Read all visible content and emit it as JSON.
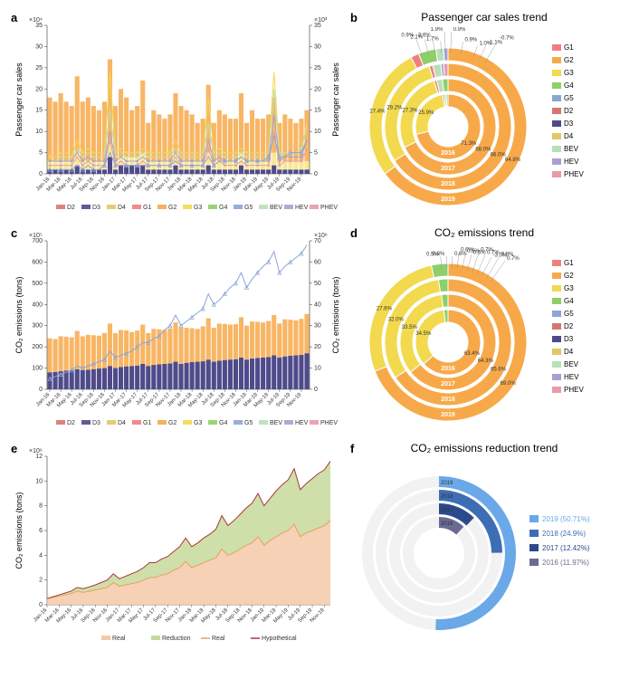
{
  "months": [
    "Jan-16",
    "Mar-16",
    "May-16",
    "Jul-16",
    "Sep-16",
    "Nov-16",
    "Jan-17",
    "Mar-17",
    "May-17",
    "Jul-17",
    "Sep-17",
    "Nov-17",
    "Jan-18",
    "Mar-18",
    "May-18",
    "Jul-18",
    "Sep-18",
    "Nov-18",
    "Jan-19",
    "Mar-19",
    "May-19",
    "Jul-19",
    "Sep-19",
    "Nov-19"
  ],
  "colors": {
    "G1": "#f17e7e",
    "G2": "#f7a94a",
    "G3": "#f2d94e",
    "G4": "#8ecf6a",
    "G5": "#8aa6d6",
    "D2": "#d6776f",
    "D3": "#4f4a8a",
    "D4": "#e2c665",
    "BEV": "#b8e0b8",
    "HEV": "#a8a0d0",
    "PHEV": "#e89aa8",
    "background": "#ffffff",
    "axis": "#333333"
  },
  "panel_a": {
    "label": "a",
    "ylabel_left": "Passenger car sales",
    "ylabel_right": "Passenger car sales",
    "y_left_exp": "×10⁴",
    "y_right_exp": "×10³",
    "ylim_left": [
      0,
      35
    ],
    "ylim_right": [
      0,
      35
    ],
    "yticks_left": [
      0,
      5,
      10,
      15,
      20,
      25,
      30,
      35
    ],
    "yticks_right": [
      0,
      5,
      10,
      15,
      20,
      25,
      30,
      35
    ],
    "bar_G2": [
      15,
      14,
      16,
      14,
      13,
      18,
      14,
      15,
      13,
      12,
      14,
      20,
      13,
      16,
      14,
      11,
      12,
      17,
      9,
      12,
      11,
      10,
      11,
      14,
      13,
      12,
      11,
      9,
      10,
      16,
      9,
      12,
      11,
      10,
      10,
      14,
      9,
      12,
      10,
      10,
      11,
      13,
      9,
      11,
      10,
      9,
      10,
      12
    ],
    "bar_G3": [
      2,
      2,
      2,
      2,
      2,
      3,
      2,
      2,
      2,
      2,
      2,
      3,
      2,
      2,
      2,
      2,
      2,
      3,
      2,
      2,
      2,
      2,
      2,
      3,
      2,
      2,
      2,
      2,
      2,
      3,
      2,
      2,
      2,
      2,
      2,
      3,
      2,
      2,
      2,
      2,
      2,
      3,
      2,
      2,
      2,
      2,
      2,
      2
    ],
    "bar_D3": [
      1,
      1,
      1,
      1,
      1,
      2,
      1,
      1,
      1,
      1,
      1,
      4,
      1,
      2,
      2,
      2,
      2,
      2,
      1,
      1,
      1,
      1,
      1,
      2,
      1,
      1,
      1,
      1,
      1,
      2,
      1,
      1,
      1,
      1,
      1,
      2,
      1,
      1,
      1,
      1,
      1,
      2,
      1,
      1,
      1,
      1,
      1,
      1
    ],
    "line_G3": [
      4,
      4,
      5,
      5,
      4,
      8,
      5,
      6,
      5,
      5,
      5,
      24,
      5,
      6,
      5,
      5,
      5,
      6,
      5,
      5,
      5,
      5,
      5,
      8,
      5,
      5,
      5,
      5,
      5,
      18,
      5,
      6,
      5,
      5,
      5,
      6,
      5,
      5,
      5,
      5,
      5,
      24,
      5,
      5,
      5,
      5,
      5,
      12
    ],
    "line_BEV": [
      3,
      3,
      4,
      4,
      3,
      6,
      4,
      5,
      4,
      4,
      4,
      15,
      4,
      5,
      4,
      4,
      4,
      5,
      4,
      4,
      4,
      4,
      4,
      6,
      4,
      4,
      4,
      4,
      4,
      12,
      4,
      5,
      4,
      4,
      4,
      5,
      4,
      4,
      4,
      4,
      4,
      20,
      4,
      5,
      5,
      5,
      6,
      11
    ],
    "line_HEV": [
      3,
      3,
      3,
      3,
      3,
      5,
      3,
      4,
      3,
      3,
      3,
      10,
      3,
      4,
      3,
      3,
      3,
      4,
      3,
      3,
      3,
      3,
      3,
      5,
      3,
      3,
      3,
      3,
      3,
      8,
      3,
      4,
      3,
      3,
      3,
      4,
      3,
      3,
      3,
      3,
      3,
      14,
      3,
      4,
      4,
      4,
      4,
      8
    ],
    "line_PHEV": [
      2,
      2,
      2,
      2,
      2,
      4,
      2,
      3,
      2,
      2,
      2,
      8,
      2,
      3,
      2,
      2,
      2,
      3,
      2,
      2,
      2,
      2,
      2,
      4,
      2,
      2,
      2,
      2,
      2,
      6,
      2,
      3,
      2,
      2,
      2,
      3,
      2,
      2,
      2,
      2,
      2,
      10,
      2,
      3,
      3,
      3,
      3,
      6
    ],
    "line_blue": [
      1,
      1,
      1,
      1,
      1,
      2,
      1,
      2,
      1,
      1,
      2,
      5,
      2,
      2,
      2,
      2,
      2,
      2,
      2,
      2,
      2,
      2,
      2,
      3,
      2,
      2,
      2,
      2,
      2,
      4,
      2,
      3,
      3,
      3,
      3,
      4,
      3,
      3,
      3,
      3,
      4,
      9,
      4,
      4,
      5,
      5,
      5,
      8
    ],
    "legend": [
      "D2",
      "D3",
      "D4",
      "G1",
      "G2",
      "G3",
      "G4",
      "G5",
      "BEV",
      "HEV",
      "PHEV"
    ]
  },
  "panel_b": {
    "label": "b",
    "title": "Passenger car sales trend",
    "years": [
      "2016",
      "2017",
      "2018",
      "2019"
    ],
    "rings": [
      {
        "year": "2016",
        "G2": 71.3,
        "G3": 25.9,
        "G1": 0.9,
        "BEV": 1.0,
        "other": 0.9
      },
      {
        "year": "2017",
        "G2": 68.0,
        "G3": 27.3,
        "G1": 0.9,
        "BEV": 1.9,
        "other": 1.9
      },
      {
        "year": "2018",
        "G2": 66.0,
        "G3": 29.2,
        "G1": 0.9,
        "BEV": 2.1,
        "HEV": 0.7,
        "PHEV": 1.1
      },
      {
        "year": "2019",
        "G2": 64.8,
        "G3": 27.4,
        "G1": 1.7,
        "G4": 3.6,
        "BEV": 1.6,
        "HEV": 0.9,
        "PHEV": 0.0
      }
    ],
    "callouts": [
      {
        "text": "1.7%",
        "angle": -95
      },
      {
        "text": "0.9%",
        "angle": -80
      },
      {
        "text": "1.0%",
        "angle": -70
      },
      {
        "text": "3.6%",
        "angle": -100
      },
      {
        "text": "2.1%",
        "angle": -105
      },
      {
        "text": "-1.1%",
        "angle": -65
      },
      {
        "text": "0.9%",
        "angle": -110
      },
      {
        "text": "1.9%",
        "angle": -92
      },
      {
        "text": "0.9%",
        "angle": -88
      },
      {
        "text": "-0.7%",
        "angle": -60
      }
    ],
    "legend": [
      "G1",
      "G2",
      "G3",
      "G4",
      "G5",
      "D2",
      "D3",
      "D4",
      "BEV",
      "HEV",
      "PHEV"
    ]
  },
  "panel_c": {
    "label": "c",
    "ylabel_left": "CO₂ emissions (tons)",
    "ylabel_right": "CO₂ emissions (tons)",
    "y_left_exp": "×10⁵",
    "y_right_exp": "×10⁶",
    "ylim_left": [
      0,
      700
    ],
    "ylim_right": [
      0,
      70
    ],
    "yticks_left": [
      0,
      100,
      200,
      300,
      400,
      500,
      600,
      700
    ],
    "yticks_right": [
      0,
      10,
      20,
      30,
      40,
      50,
      60,
      70
    ],
    "bar_G2": [
      160,
      155,
      165,
      160,
      155,
      180,
      160,
      165,
      160,
      155,
      165,
      200,
      165,
      175,
      170,
      160,
      165,
      185,
      155,
      170,
      165,
      160,
      165,
      185,
      170,
      165,
      160,
      155,
      165,
      195,
      160,
      175,
      170,
      165,
      165,
      190,
      160,
      175,
      170,
      165,
      170,
      190,
      160,
      175,
      170,
      165,
      170,
      185
    ],
    "bar_D3": [
      80,
      82,
      85,
      88,
      90,
      95,
      90,
      92,
      95,
      98,
      100,
      110,
      100,
      105,
      108,
      110,
      112,
      120,
      110,
      115,
      118,
      120,
      122,
      130,
      120,
      125,
      128,
      130,
      132,
      140,
      130,
      135,
      138,
      140,
      142,
      150,
      140,
      145,
      148,
      150,
      152,
      160,
      150,
      155,
      158,
      160,
      162,
      170
    ],
    "line_blue": [
      5,
      6,
      7,
      8,
      9,
      11,
      10,
      11,
      12,
      13,
      14,
      18,
      15,
      16,
      17,
      18,
      20,
      22,
      22,
      24,
      25,
      28,
      30,
      35,
      30,
      32,
      34,
      36,
      38,
      45,
      40,
      42,
      45,
      48,
      50,
      55,
      48,
      52,
      55,
      58,
      60,
      65,
      55,
      58,
      60,
      62,
      64,
      68
    ],
    "legend": [
      "D2",
      "D3",
      "D4",
      "G1",
      "G2",
      "G3",
      "G4",
      "G5",
      "BEV",
      "HEV",
      "PHEV"
    ]
  },
  "panel_d": {
    "label": "d",
    "title": "CO₂ emissions trend",
    "rings": [
      {
        "year": "2016",
        "G2": 63.4,
        "G3": 34.5,
        "other": 2.1
      },
      {
        "year": "2017",
        "G2": 64.3,
        "G3": 33.5,
        "other": 2.2
      },
      {
        "year": "2018",
        "G2": 65.6,
        "G3": 32.0,
        "other": 2.4
      },
      {
        "year": "2019",
        "G2": 69.0,
        "G3": 27.6,
        "other": 3.4
      }
    ],
    "callouts": [
      {
        "text": "0.5%"
      },
      {
        "text": "0.8%"
      },
      {
        "text": "0.6%"
      },
      {
        "text": "0.6%"
      },
      {
        "text": "0.5%"
      },
      {
        "text": "0.5%"
      },
      {
        "text": "0.7%"
      },
      {
        "text": "0.7%"
      },
      {
        "text": "-3.0%"
      },
      {
        "text": "0.9%"
      },
      {
        "text": "0.7%"
      }
    ],
    "legend": [
      "G1",
      "G2",
      "G3",
      "G4",
      "G5",
      "D2",
      "D3",
      "D4",
      "BEV",
      "HEV",
      "PHEV"
    ]
  },
  "panel_e": {
    "label": "e",
    "ylabel": "CO₂ emissions (tons)",
    "y_exp": "×10⁶",
    "ylim": [
      0,
      12
    ],
    "yticks": [
      0,
      2,
      4,
      6,
      8,
      10,
      12
    ],
    "real": [
      0.5,
      0.6,
      0.7,
      0.8,
      0.9,
      1.1,
      1.0,
      1.1,
      1.2,
      1.3,
      1.4,
      1.8,
      1.5,
      1.6,
      1.7,
      1.8,
      2.0,
      2.2,
      2.2,
      2.4,
      2.5,
      2.8,
      3.0,
      3.5,
      3.0,
      3.2,
      3.4,
      3.6,
      3.8,
      4.5,
      4.0,
      4.2,
      4.5,
      4.8,
      5.0,
      5.5,
      4.8,
      5.2,
      5.5,
      5.8,
      6.0,
      6.5,
      5.5,
      5.8,
      6.0,
      6.2,
      6.4,
      6.8
    ],
    "hypothetical": [
      0.5,
      0.65,
      0.8,
      0.95,
      1.1,
      1.4,
      1.3,
      1.45,
      1.6,
      1.8,
      2.0,
      2.5,
      2.1,
      2.3,
      2.5,
      2.7,
      3.0,
      3.4,
      3.4,
      3.7,
      3.9,
      4.3,
      4.7,
      5.4,
      4.7,
      5.0,
      5.4,
      5.7,
      6.1,
      7.2,
      6.4,
      6.8,
      7.3,
      7.8,
      8.2,
      9.0,
      8.0,
      8.6,
      9.2,
      9.7,
      10.1,
      11.0,
      9.3,
      9.8,
      10.2,
      10.6,
      10.9,
      11.6
    ],
    "area_real_color": "#f4c9a8",
    "area_reduction_color": "#c5d99b",
    "line_real_color": "#e8a060",
    "line_hyp_color": "#a83838",
    "legend": [
      "Real",
      "Reduction",
      "Real",
      "Hypothetical"
    ]
  },
  "panel_f": {
    "label": "f",
    "title": "CO₂ emissions reduction trend",
    "years": [
      "2019",
      "2018",
      "2017",
      "2016"
    ],
    "data": [
      {
        "year": "2019",
        "pct": 50.71,
        "color": "#6aa8e8"
      },
      {
        "year": "2018",
        "pct": 24.9,
        "color": "#3d6db5"
      },
      {
        "year": "2017",
        "pct": 12.42,
        "color": "#2b4a8c"
      },
      {
        "year": "2016",
        "pct": 11.97,
        "color": "#6a6a95"
      }
    ],
    "legend": [
      {
        "label": "2019 (50.71%)",
        "color": "#6aa8e8"
      },
      {
        "label": "2018 (24.9%)",
        "color": "#3d6db5"
      },
      {
        "label": "2017 (12.42%)",
        "color": "#2b4a8c"
      },
      {
        "label": "2016 (11.97%)",
        "color": "#6a6a95"
      }
    ]
  }
}
